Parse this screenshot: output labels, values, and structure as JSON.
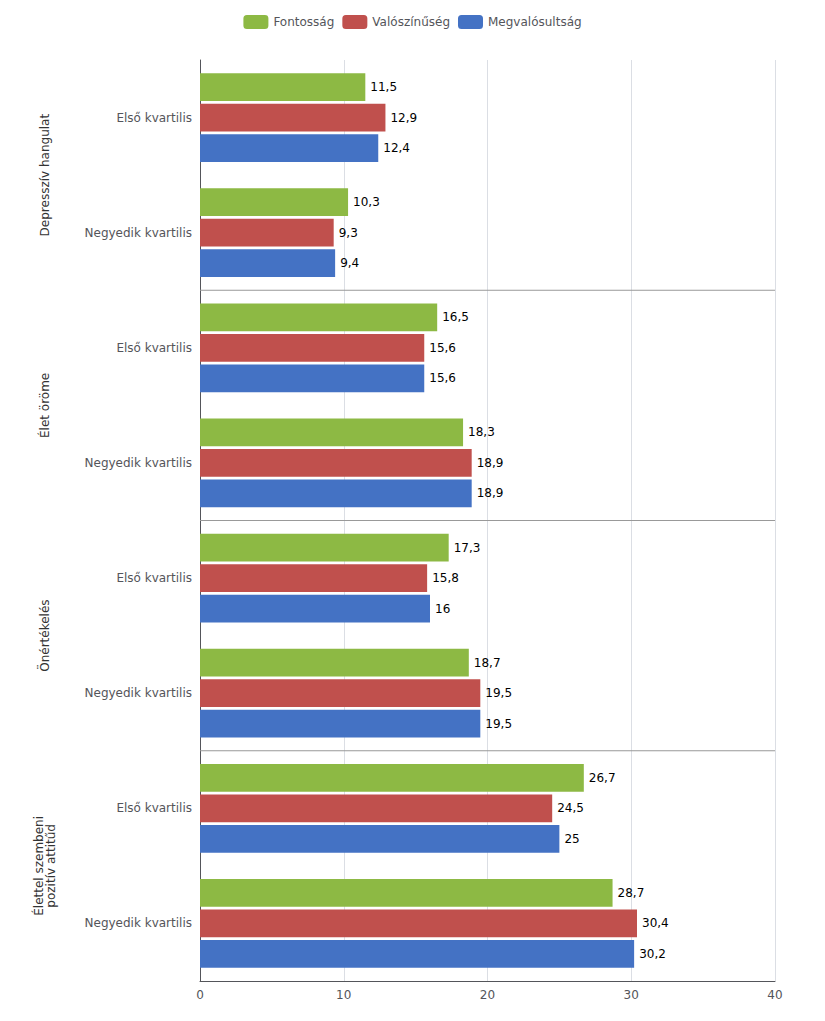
{
  "chart_data": {
    "type": "bar",
    "orientation": "horizontal",
    "categories": [
      "Negyedik kvartilis",
      "Első kvartilis",
      "Negyedik kvartilis",
      "Első kvartilis",
      "Negyedik kvartilis",
      "Első kvartilis",
      "Negyedik kvartilis",
      "Első kvartilis"
    ],
    "group_labels": [
      "Élettel szembeni\npozitív attitűd",
      "Önértékelés",
      "Élet öröme",
      "Depresszív hangulat"
    ],
    "series": [
      {
        "name": "Fontosság",
        "color": "#8DB944",
        "values": [
          28.7,
          26.7,
          18.7,
          17.3,
          18.3,
          16.5,
          10.3,
          11.5
        ],
        "value_labels": [
          "28,7",
          "26,7",
          "18,7",
          "17,3",
          "18,3",
          "16,5",
          "10,3",
          "11,5"
        ]
      },
      {
        "name": "Valószínűség",
        "color": "#C0504D",
        "values": [
          30.4,
          24.5,
          19.5,
          15.8,
          18.9,
          15.6,
          9.3,
          12.9
        ],
        "value_labels": [
          "30,4",
          "24,5",
          "19,5",
          "15,8",
          "18,9",
          "15,6",
          "9,3",
          "12,9"
        ]
      },
      {
        "name": "Megvalósultság",
        "color": "#4472C4",
        "values": [
          30.2,
          25.0,
          19.5,
          16.0,
          18.9,
          15.6,
          9.4,
          12.4
        ],
        "value_labels": [
          "30,2",
          "25",
          "19,5",
          "16",
          "18,9",
          "15,6",
          "9,4",
          "12,4"
        ]
      }
    ],
    "xlim": [
      0,
      40
    ],
    "xticks": [
      0,
      10,
      20,
      30,
      40
    ],
    "grid": true,
    "legend": "top",
    "data_labels": true
  }
}
